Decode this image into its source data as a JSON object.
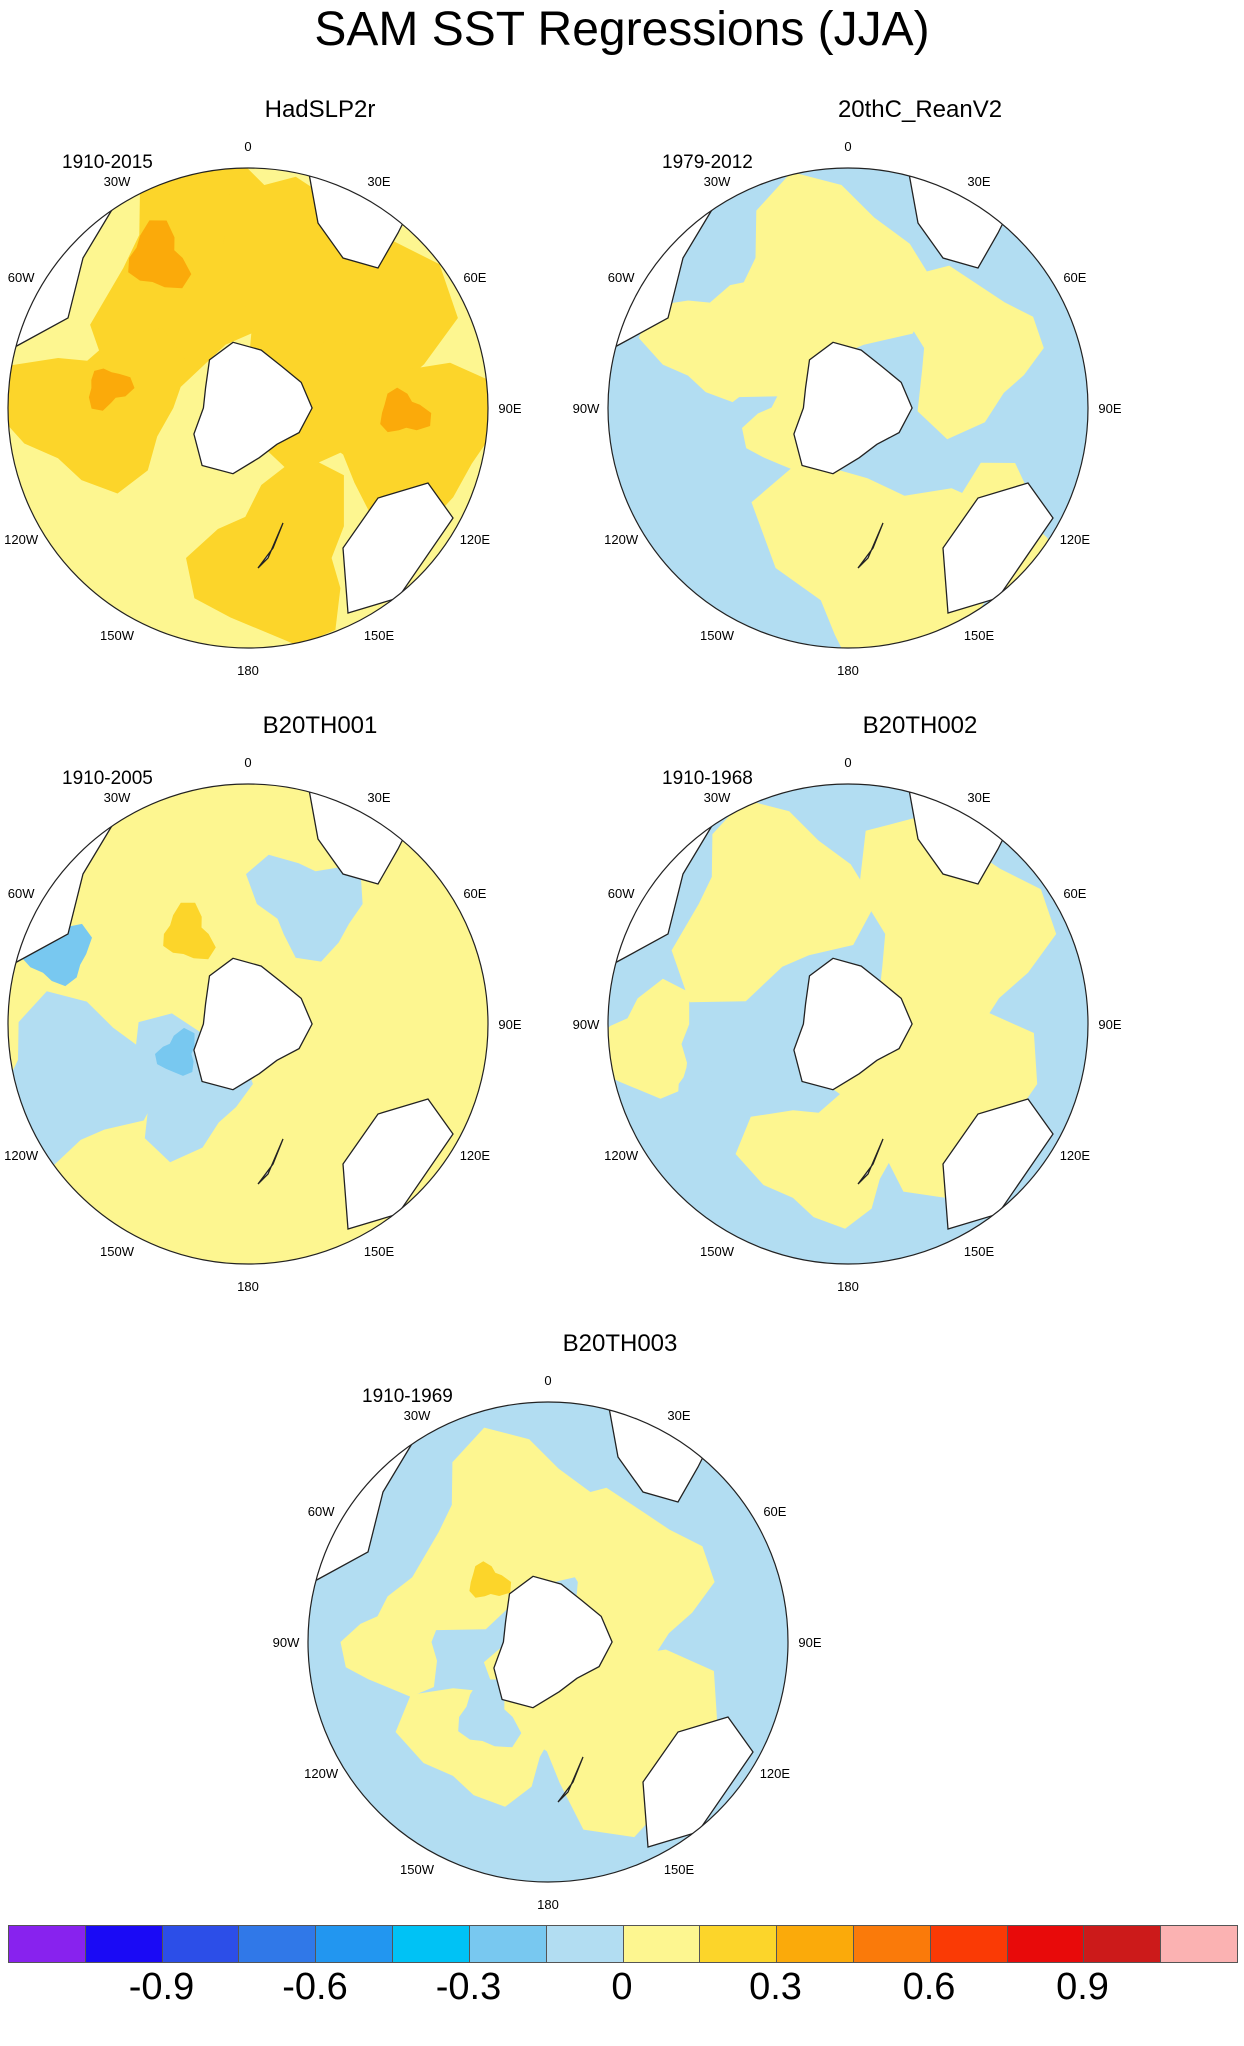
{
  "title": "SAM SST Regressions (JJA)",
  "lon_labels": [
    "0",
    "30E",
    "60E",
    "90E",
    "120E",
    "150E",
    "180",
    "150W",
    "120W",
    "90W",
    "60W",
    "30W"
  ],
  "panels": [
    {
      "name": "HadSLP2r",
      "period": "1910-2015",
      "dominant": "warm"
    },
    {
      "name": "20thC_ReanV2",
      "period": "1979-2012",
      "dominant": "mixed"
    },
    {
      "name": "B20TH001",
      "period": "1910-2005",
      "dominant": "mixed"
    },
    {
      "name": "B20TH002",
      "period": "1910-1968",
      "dominant": "mixed"
    },
    {
      "name": "B20TH003",
      "period": "1910-1969",
      "dominant": "mixed"
    }
  ],
  "colorbar": {
    "colors": [
      "#8822ee",
      "#1a0af5",
      "#2c4ee8",
      "#3078e8",
      "#2296f0",
      "#00c2f5",
      "#78c8f0",
      "#b2ddf2",
      "#fdf690",
      "#fcd52a",
      "#fbaa0a",
      "#fa7a0a",
      "#fa3a05",
      "#e80a0a",
      "#cc1a1a",
      "#fbb2b2"
    ],
    "labels": [
      "-0.9",
      "-0.6",
      "-0.3",
      "0",
      "0.3",
      "0.6",
      "0.9"
    ]
  }
}
